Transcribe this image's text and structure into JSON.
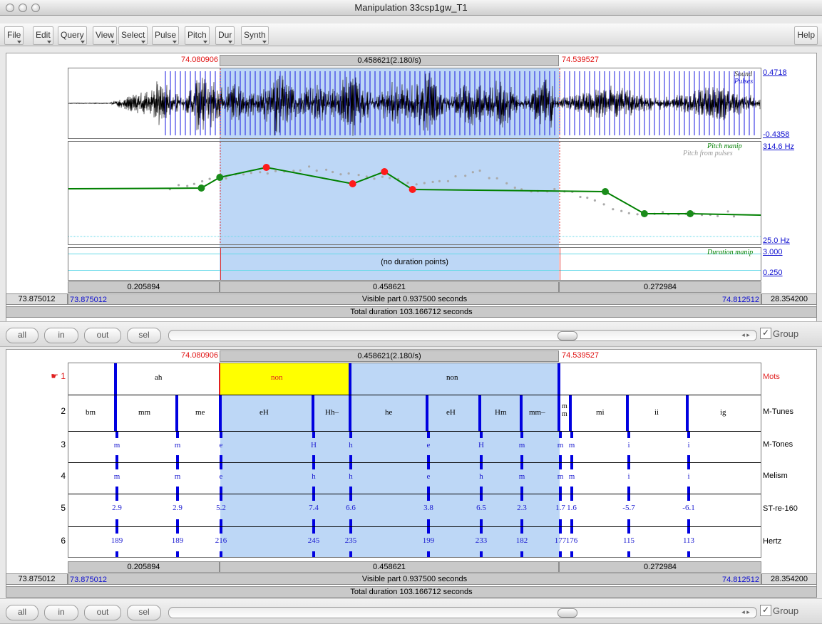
{
  "window": {
    "title": "Manipulation 33csp1gw_T1"
  },
  "menus": [
    "File",
    "Edit",
    "Query",
    "View",
    "Select",
    "Pulse",
    "Pitch",
    "Dur",
    "Synth"
  ],
  "help_menu": "Help",
  "selection": {
    "start": "74.080906",
    "end": "74.539527",
    "length_label": "0.458621(2.180/s)"
  },
  "waveform": {
    "legend_sound": "Sound",
    "legend_pulses": "Pulses",
    "top_value": "0.4718",
    "bottom_value": "-0.4358"
  },
  "pitch": {
    "legend_manip": "Pitch manip",
    "legend_from_pulses": "Pitch from pulses",
    "top_value": "314.6 Hz",
    "bottom_value": "25.0 Hz",
    "points": [
      {
        "t": 74.055,
        "selected": false
      },
      {
        "t": 74.08,
        "selected": false
      },
      {
        "t": 74.143,
        "selected": true
      },
      {
        "t": 74.26,
        "selected": true
      },
      {
        "t": 74.303,
        "selected": true
      },
      {
        "t": 74.341,
        "selected": true
      },
      {
        "t": 74.602,
        "selected": false
      },
      {
        "t": 74.655,
        "selected": false
      },
      {
        "t": 74.717,
        "selected": false
      }
    ]
  },
  "duration": {
    "message": "(no duration points)",
    "legend": "Duration manip",
    "top_value": "3.000",
    "bottom_value": "0.250"
  },
  "segments": [
    "0.205894",
    "0.458621",
    "0.272984"
  ],
  "visible": {
    "left_outer": "73.875012",
    "left_inner": "73.875012",
    "text": "Visible part 0.937500 seconds",
    "right_inner": "74.812512",
    "right_outer": "28.354200"
  },
  "total_duration": "Total duration 103.166712 seconds",
  "zoom": {
    "all": "all",
    "in": "in",
    "out": "out",
    "sel": "sel",
    "group_label": "Group",
    "group_checked": "✓"
  },
  "textgrid": {
    "tiers": [
      {
        "number": "1",
        "name": "Mots",
        "intervals": [
          {
            "label": "ah"
          },
          {
            "label": "non"
          },
          {
            "label": "non"
          },
          {
            "label": ""
          }
        ]
      },
      {
        "number": "2",
        "name": "M-Tunes",
        "intervals": [
          {
            "label": "bm"
          },
          {
            "label": "mm"
          },
          {
            "label": "me"
          },
          {
            "label": "eH"
          },
          {
            "label": "Hh–"
          },
          {
            "label": "he"
          },
          {
            "label": "eH"
          },
          {
            "label": "Hm"
          },
          {
            "label": "mm–"
          },
          {
            "label": "m m"
          },
          {
            "label": "mi"
          },
          {
            "label": "ii"
          },
          {
            "label": "ig"
          }
        ]
      },
      {
        "number": "3",
        "name": "M-Tones",
        "points": [
          "m",
          "m",
          "e",
          "H",
          "h",
          "e",
          "H",
          "m",
          "m",
          "m",
          "i",
          "i"
        ]
      },
      {
        "number": "4",
        "name": "Melism",
        "points": [
          "m",
          "m",
          "e",
          "h",
          "h",
          "e",
          "h",
          "m",
          "m",
          "m",
          "i",
          "i"
        ]
      },
      {
        "number": "5",
        "name": "ST-re-160",
        "points": [
          "2.9",
          "2.9",
          "5.2",
          "7.4",
          "6.6",
          "3.8",
          "6.5",
          "2.3",
          "1.7",
          "1.6",
          "-5.7",
          "-6.1"
        ]
      },
      {
        "number": "6",
        "name": "Hertz",
        "points": [
          "189",
          "189",
          "216",
          "245",
          "235",
          "199",
          "233",
          "182",
          "177",
          "176",
          "115",
          "113"
        ]
      }
    ]
  },
  "colors": {
    "selection": "#bdd7f6",
    "highlight_interval": "#ffff00",
    "boundary": "#0000e0",
    "pitch_line": "#008000",
    "pitch_point": "#ff0000",
    "red_time": "#e01010",
    "blue_time": "#1010d0"
  }
}
